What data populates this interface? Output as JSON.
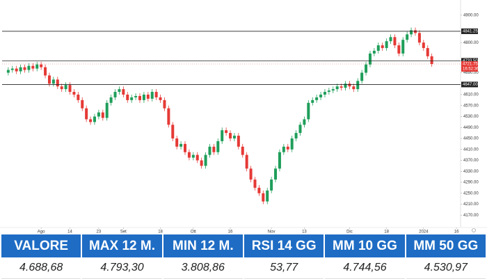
{
  "chart_data": {
    "type": "candlestick",
    "open": [
      4690,
      4700,
      4705,
      4695,
      4710,
      4700,
      4715,
      4705,
      4720,
      4710,
      4680,
      4650,
      4665,
      4640,
      4630,
      4645,
      4620,
      4610,
      4590,
      4560,
      4520,
      4510,
      4530,
      4545,
      4525,
      4580,
      4600,
      4620,
      4630,
      4610,
      4590,
      4600,
      4605,
      4590,
      4610,
      4595,
      4620,
      4600,
      4590,
      4560,
      4500,
      4450,
      4420,
      4430,
      4400,
      4380,
      4390,
      4370,
      4350,
      4390,
      4420,
      4400,
      4440,
      4480,
      4470,
      4450,
      4460,
      4420,
      4390,
      4340,
      4300,
      4270,
      4250,
      4220,
      4260,
      4300,
      4340,
      4400,
      4420,
      4410,
      4450,
      4470,
      4500,
      4520,
      4580,
      4590,
      4600,
      4610,
      4620,
      4625,
      4630,
      4640,
      4635,
      4650,
      4640,
      4630,
      4660,
      4690,
      4720,
      4760,
      4770,
      4790,
      4780,
      4805,
      4820,
      4790,
      4760,
      4810,
      4830,
      4845,
      4835,
      4800,
      4780,
      4750
    ],
    "high": [
      4710,
      4715,
      4715,
      4720,
      4720,
      4725,
      4725,
      4730,
      4730,
      4720,
      4690,
      4675,
      4675,
      4650,
      4655,
      4655,
      4630,
      4620,
      4600,
      4570,
      4530,
      4540,
      4555,
      4555,
      4590,
      4610,
      4630,
      4640,
      4640,
      4620,
      4610,
      4615,
      4615,
      4620,
      4620,
      4630,
      4630,
      4610,
      4600,
      4570,
      4510,
      4460,
      4440,
      4440,
      4410,
      4400,
      4400,
      4380,
      4400,
      4430,
      4430,
      4450,
      4490,
      4490,
      4480,
      4470,
      4470,
      4430,
      4400,
      4350,
      4310,
      4280,
      4260,
      4270,
      4310,
      4350,
      4410,
      4430,
      4430,
      4460,
      4480,
      4510,
      4530,
      4590,
      4600,
      4610,
      4620,
      4630,
      4635,
      4640,
      4650,
      4650,
      4660,
      4660,
      4650,
      4670,
      4700,
      4730,
      4770,
      4780,
      4800,
      4800,
      4815,
      4830,
      4830,
      4800,
      4820,
      4840,
      4855,
      4855,
      4845,
      4810,
      4790,
      4760
    ],
    "low": [
      4680,
      4690,
      4685,
      4685,
      4690,
      4690,
      4695,
      4695,
      4700,
      4670,
      4640,
      4640,
      4630,
      4620,
      4620,
      4610,
      4600,
      4580,
      4550,
      4510,
      4500,
      4500,
      4520,
      4515,
      4515,
      4570,
      4590,
      4610,
      4600,
      4580,
      4580,
      4590,
      4580,
      4580,
      4585,
      4585,
      4590,
      4580,
      4550,
      4490,
      4440,
      4410,
      4410,
      4390,
      4370,
      4370,
      4360,
      4340,
      4340,
      4380,
      4390,
      4390,
      4430,
      4460,
      4440,
      4440,
      4410,
      4380,
      4330,
      4290,
      4260,
      4240,
      4210,
      4210,
      4250,
      4290,
      4330,
      4390,
      4400,
      4400,
      4440,
      4460,
      4490,
      4510,
      4570,
      4580,
      4590,
      4600,
      4610,
      4615,
      4620,
      4625,
      4625,
      4630,
      4620,
      4620,
      4650,
      4680,
      4710,
      4750,
      4760,
      4770,
      4770,
      4795,
      4780,
      4750,
      4750,
      4800,
      4820,
      4825,
      4790,
      4770,
      4740,
      4711.75
    ],
    "close": [
      4700,
      4705,
      4695,
      4710,
      4700,
      4715,
      4705,
      4720,
      4710,
      4680,
      4650,
      4665,
      4640,
      4630,
      4645,
      4620,
      4610,
      4590,
      4560,
      4520,
      4510,
      4530,
      4545,
      4525,
      4580,
      4600,
      4620,
      4630,
      4610,
      4590,
      4600,
      4605,
      4590,
      4610,
      4595,
      4620,
      4600,
      4590,
      4560,
      4500,
      4450,
      4420,
      4430,
      4400,
      4380,
      4390,
      4370,
      4350,
      4390,
      4420,
      4400,
      4440,
      4480,
      4470,
      4450,
      4460,
      4420,
      4390,
      4340,
      4300,
      4270,
      4250,
      4220,
      4260,
      4300,
      4340,
      4400,
      4420,
      4410,
      4450,
      4470,
      4500,
      4520,
      4580,
      4590,
      4600,
      4610,
      4620,
      4625,
      4630,
      4640,
      4635,
      4650,
      4640,
      4630,
      4660,
      4690,
      4720,
      4760,
      4770,
      4790,
      4780,
      4805,
      4820,
      4790,
      4760,
      4810,
      4830,
      4845,
      4835,
      4800,
      4780,
      4750,
      4721.75
    ],
    "up_color": "#1f9e5a",
    "down_color": "#e53935",
    "xlim": [
      -1.5,
      110
    ],
    "xticks": [
      {
        "value": 8,
        "label": "Ago"
      },
      {
        "value": 15,
        "label": "14"
      },
      {
        "value": 22,
        "label": "23"
      },
      {
        "value": 28,
        "label": "Set"
      },
      {
        "value": 37,
        "label": "18"
      },
      {
        "value": 45,
        "label": "Ott"
      },
      {
        "value": 54,
        "label": "16"
      },
      {
        "value": 64,
        "label": "Nov"
      },
      {
        "value": 72,
        "label": "13"
      },
      {
        "value": 83,
        "label": "Dic"
      },
      {
        "value": 92,
        "label": "18"
      },
      {
        "value": 101,
        "label": "2024"
      },
      {
        "value": 109,
        "label": "16"
      }
    ],
    "ylim": [
      4130,
      4930
    ],
    "yticks": [
      {
        "value": 4900,
        "label": "4900.00"
      },
      {
        "value": 4800,
        "label": "4800.00"
      },
      {
        "value": 4690,
        "label": "4690.00"
      },
      {
        "value": 4610,
        "label": "4610.00"
      },
      {
        "value": 4570,
        "label": "4570.00"
      },
      {
        "value": 4530,
        "label": "4530.00"
      },
      {
        "value": 4490,
        "label": "4490.00"
      },
      {
        "value": 4450,
        "label": "4450.00"
      },
      {
        "value": 4410,
        "label": "4410.00"
      },
      {
        "value": 4370,
        "label": "4370.00"
      },
      {
        "value": 4330,
        "label": "4330.00"
      },
      {
        "value": 4290,
        "label": "4290.00"
      },
      {
        "value": 4250,
        "label": "4250.00"
      },
      {
        "value": 4210,
        "label": "4210.00"
      },
      {
        "value": 4170,
        "label": "4170.00"
      }
    ],
    "levels": [
      {
        "value": 4841.25,
        "label": "4841.25"
      },
      {
        "value": 4733.5,
        "label": "4733.50"
      },
      {
        "value": 4647,
        "label": "4647.00"
      }
    ],
    "last_price": {
      "value": 4721.75,
      "label": "4721.75"
    },
    "last_price_time": "16:52:36"
  },
  "table": {
    "headers": [
      "VALORE",
      "MAX 12 M.",
      "MIN 12 M.",
      "RSI 14 GG",
      "MM 10 GG",
      "MM 50 GG"
    ],
    "values": [
      "4.688,68",
      "4.793,30",
      "3.808,86",
      "53,77",
      "4.744,56",
      "4.530,97"
    ]
  }
}
